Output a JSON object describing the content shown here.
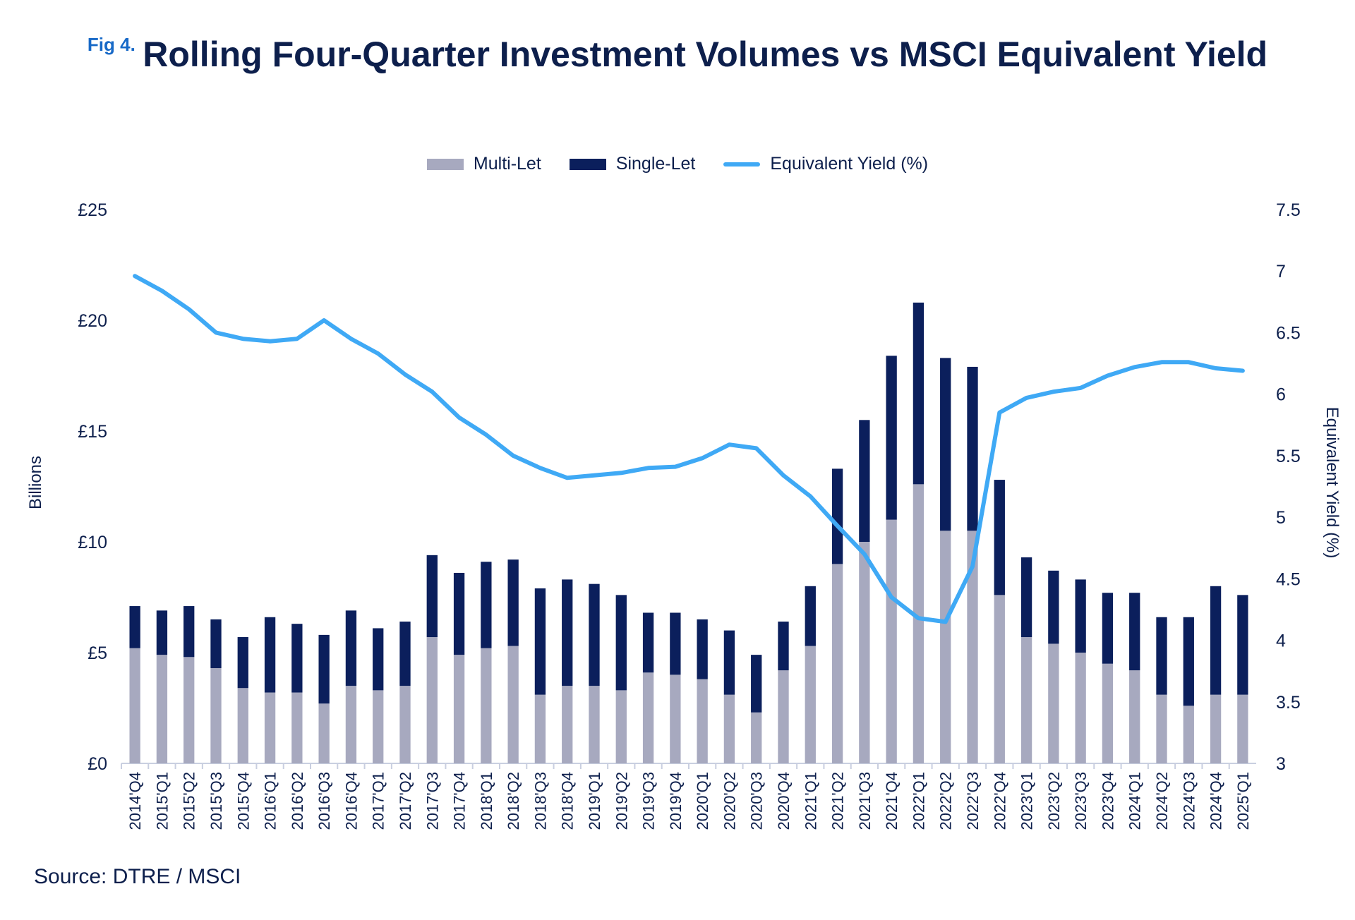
{
  "figure": {
    "label": "Fig 4.",
    "title": "Rolling Four-Quarter Investment Volumes vs MSCI Equivalent Yield",
    "source": "Source: DTRE / MSCI"
  },
  "colors": {
    "multi_let": "#a7a9bf",
    "single_let": "#0b1f5c",
    "yield_line": "#3fa9f5",
    "text": "#0d1f4c",
    "axis": "#c9cfe0"
  },
  "chart_data": {
    "type": "bar",
    "stacked": true,
    "title": "Rolling Four-Quarter Investment Volumes vs MSCI Equivalent Yield",
    "ylabel": "Billions",
    "y2label": "Equivalent Yield (%)",
    "ylim": [
      0,
      25
    ],
    "y2lim": [
      3,
      7.5
    ],
    "yticks": [
      "£0",
      "£5",
      "£10",
      "£15",
      "£20",
      "£25"
    ],
    "y2ticks": [
      "3",
      "3.5",
      "4",
      "4.5",
      "5",
      "5.5",
      "6",
      "6.5",
      "7",
      "7.5"
    ],
    "legend": [
      "Multi-Let",
      "Single-Let",
      "Equivalent Yield (%)"
    ],
    "legend_position": "top-center",
    "categories": [
      "2014'Q4",
      "2015'Q1",
      "2015'Q2",
      "2015'Q3",
      "2015'Q4",
      "2016'Q1",
      "2016'Q2",
      "2016'Q3",
      "2016'Q4",
      "2017'Q1",
      "2017'Q2",
      "2017'Q3",
      "2017'Q4",
      "2018'Q1",
      "2018'Q2",
      "2018'Q3",
      "2018'Q4",
      "2019'Q1",
      "2019'Q2",
      "2019'Q3",
      "2019'Q4",
      "2020'Q1",
      "2020'Q2",
      "2020'Q3",
      "2020'Q4",
      "2021'Q1",
      "2021'Q2",
      "2021'Q3",
      "2021'Q4",
      "2022'Q1",
      "2022'Q2",
      "2022'Q3",
      "2022'Q4",
      "2023'Q1",
      "2023'Q2",
      "2023'Q3",
      "2023'Q4",
      "2024'Q1",
      "2024'Q2",
      "2024'Q3",
      "2024'Q4",
      "2025'Q1"
    ],
    "series": [
      {
        "name": "Multi-Let",
        "type": "bar",
        "axis": "left",
        "values": [
          5.2,
          4.9,
          4.8,
          4.3,
          3.4,
          3.2,
          3.2,
          2.7,
          3.5,
          3.3,
          3.5,
          5.7,
          4.9,
          5.2,
          5.3,
          3.1,
          3.5,
          3.5,
          3.3,
          4.1,
          4.0,
          3.8,
          3.1,
          2.3,
          4.2,
          5.3,
          9.0,
          10.0,
          11.0,
          12.6,
          10.5,
          10.5,
          7.6,
          5.7,
          5.4,
          5.0,
          4.5,
          4.2,
          3.1,
          2.6,
          3.1,
          3.1
        ]
      },
      {
        "name": "Single-Let",
        "type": "bar",
        "axis": "left",
        "values": [
          1.9,
          2.0,
          2.3,
          2.2,
          2.3,
          3.4,
          3.1,
          3.1,
          3.4,
          2.8,
          2.9,
          3.7,
          3.7,
          3.9,
          3.9,
          4.8,
          4.8,
          4.6,
          4.3,
          2.7,
          2.8,
          2.7,
          2.9,
          2.6,
          2.2,
          2.7,
          4.3,
          5.5,
          7.4,
          8.2,
          7.8,
          7.4,
          5.2,
          3.6,
          3.3,
          3.3,
          3.2,
          3.5,
          3.5,
          4.0,
          4.9,
          4.5
        ]
      },
      {
        "name": "Equivalent Yield (%)",
        "type": "line",
        "axis": "right",
        "values": [
          6.96,
          6.84,
          6.69,
          6.5,
          6.45,
          6.43,
          6.45,
          6.6,
          6.45,
          6.33,
          6.16,
          6.02,
          5.81,
          5.67,
          5.5,
          5.4,
          5.32,
          5.34,
          5.36,
          5.4,
          5.41,
          5.48,
          5.59,
          5.56,
          5.34,
          5.17,
          4.93,
          4.7,
          4.35,
          4.18,
          4.15,
          4.6,
          5.85,
          5.97,
          6.02,
          6.05,
          6.15,
          6.22,
          6.26,
          6.26,
          6.21,
          6.19
        ]
      }
    ]
  }
}
